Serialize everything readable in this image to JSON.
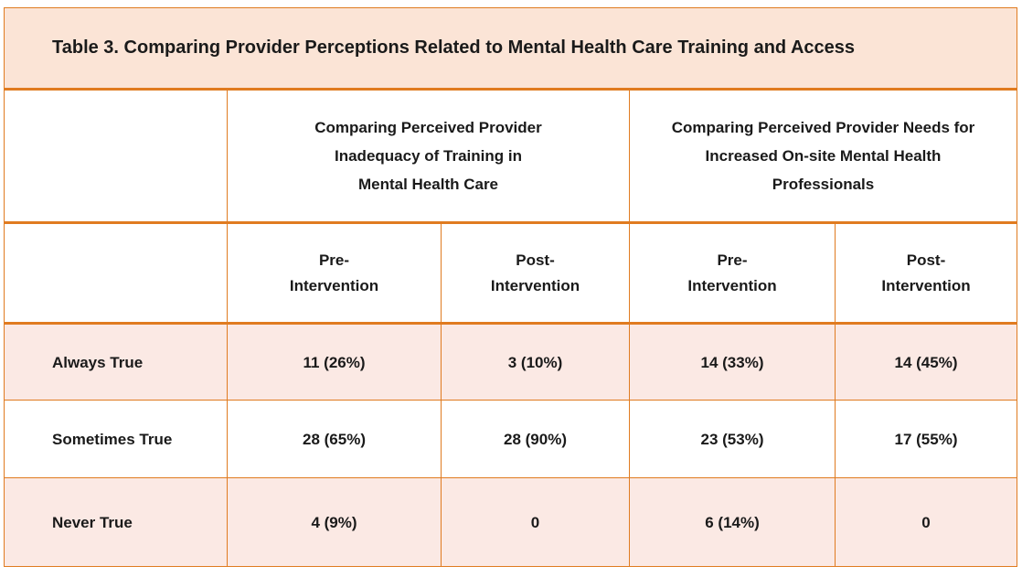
{
  "table": {
    "title": "Table 3. Comparing Provider Perceptions Related to Mental Health Care Training and Access",
    "groups": [
      {
        "lines": [
          "Comparing Perceived Provider",
          "Inadequacy of Training in",
          "Mental Health Care"
        ]
      },
      {
        "lines": [
          "Comparing Perceived Provider Needs for",
          "Increased On-site Mental Health",
          "Professionals"
        ]
      }
    ],
    "subheaders": [
      {
        "line1": "Pre-",
        "line2": "Intervention"
      },
      {
        "line1": "Post-",
        "line2": "Intervention"
      },
      {
        "line1": "Pre-",
        "line2": "Intervention"
      },
      {
        "line1": "Post-",
        "line2": "Intervention"
      }
    ],
    "rows": [
      {
        "label": "Always True",
        "values": [
          "11 (26%)",
          "3 (10%)",
          "14 (33%)",
          "14 (45%)"
        ]
      },
      {
        "label": "Sometimes True",
        "values": [
          "28 (65%)",
          "28 (90%)",
          "23 (53%)",
          "17 (55%)"
        ]
      },
      {
        "label": "Never True",
        "values": [
          "4 (9%)",
          "0",
          "6 (14%)",
          "0"
        ]
      }
    ],
    "colors": {
      "border": "#e07b20",
      "title_fill": "#fbe4d6",
      "shaded_row_fill": "#fbe9e4"
    }
  }
}
